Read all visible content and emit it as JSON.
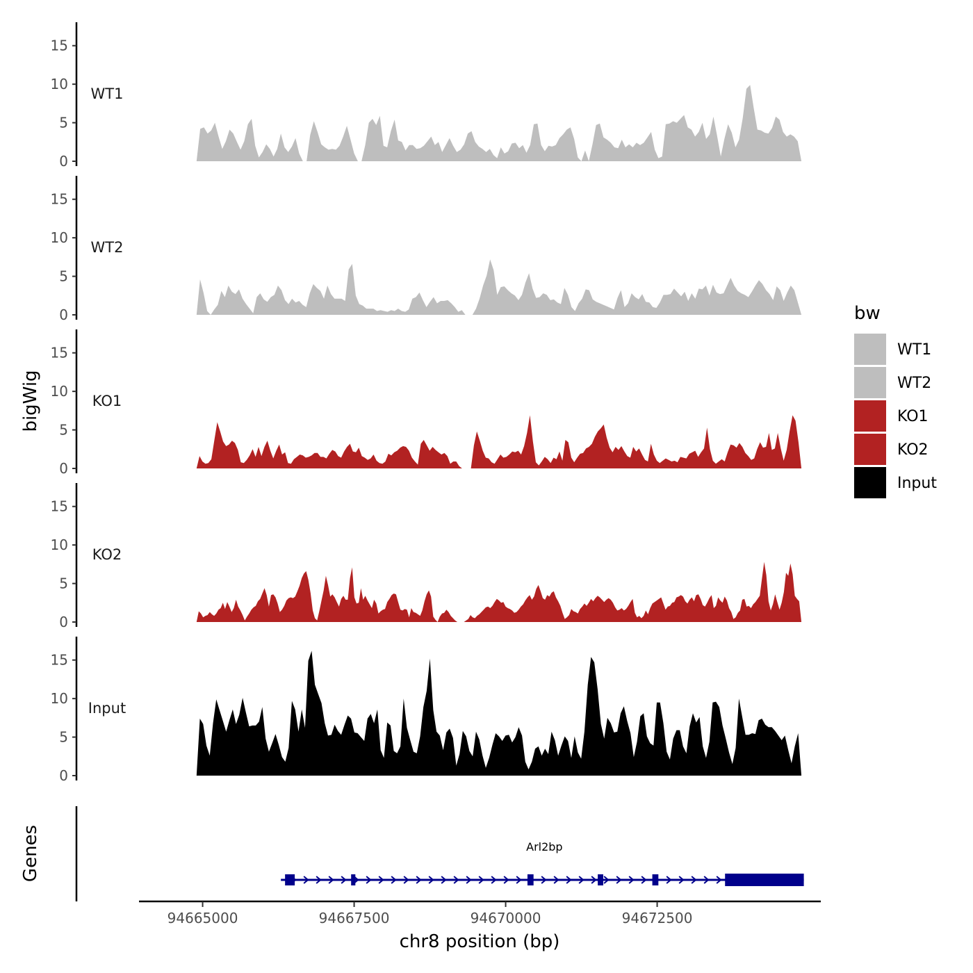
{
  "chart_data": {
    "type": "area",
    "title": "",
    "ylabel": "bigWig",
    "xlabel": "chr8 position (bp)",
    "ylim": [
      0,
      17.5
    ],
    "yticks": [
      0,
      5,
      10,
      15
    ],
    "xlim": [
      94663950,
      94675200
    ],
    "xticks": [
      94665000,
      94667500,
      94670000,
      94672500
    ],
    "x_range": [
      94664900,
      94674880
    ],
    "legend": {
      "title": "bw",
      "position": "right",
      "entries": [
        {
          "label": "WT1",
          "color": "#bebebe"
        },
        {
          "label": "WT2",
          "color": "#bebebe"
        },
        {
          "label": "KO1",
          "color": "#b22222"
        },
        {
          "label": "KO2",
          "color": "#b22222"
        },
        {
          "label": "Input",
          "color": "#000000"
        }
      ]
    },
    "series": [
      {
        "name": "WT1",
        "color": "#bebebe",
        "values": [
          0,
          4.2,
          4.4,
          3.6,
          4.0,
          5.0,
          3.2,
          1.6,
          2.6,
          4.1,
          3.6,
          2.5,
          1.5,
          2.6,
          4.8,
          5.5,
          2.0,
          0.5,
          1.2,
          2.2,
          1.6,
          0.6,
          1.6,
          3.6,
          1.8,
          1.2,
          1.9,
          3.0,
          1.0,
          0,
          0,
          3.4,
          5.2,
          3.8,
          2.2,
          1.8,
          1.5,
          1.6,
          1.5,
          2.0,
          3.2,
          4.6,
          2.8,
          1.0,
          0,
          0,
          2.1,
          5.0,
          5.5,
          4.7,
          5.9,
          2.0,
          1.8,
          3.9,
          5.4,
          2.7,
          2.5,
          1.4,
          2.1,
          2.1,
          1.6,
          1.7,
          2.0,
          2.6,
          3.2,
          2.1,
          2.5,
          1.2,
          2.1,
          3.0,
          2.0,
          1.2,
          1.5,
          2.2,
          3.6,
          3.9,
          2.5,
          1.9,
          1.6,
          1.2,
          1.6,
          0.8,
          0.4,
          1.8,
          1.0,
          1.3,
          2.3,
          2.4,
          1.7,
          2.1,
          1.1,
          2.1,
          4.8,
          4.9,
          2.1,
          1.3,
          2.0,
          1.9,
          2.1,
          3.0,
          3.5,
          4.1,
          4.4,
          2.9,
          0.5,
          0,
          1.4,
          0,
          2.2,
          4.7,
          4.9,
          3.1,
          2.8,
          2.4,
          1.8,
          1.7,
          2.8,
          1.8,
          2.2,
          1.8,
          2.4,
          2.1,
          2.4,
          3.1,
          3.8,
          1.5,
          0.4,
          0.6,
          4.8,
          4.9,
          5.2,
          5.0,
          5.5,
          6.0,
          4.4,
          4.1,
          3.2,
          3.8,
          5.0,
          2.9,
          3.5,
          5.8,
          3.3,
          0.6,
          2.9,
          4.8,
          3.7,
          1.8,
          2.8,
          5.6,
          9.4,
          9.9,
          6.9,
          4.1,
          4.0,
          3.7,
          3.6,
          4.3,
          5.8,
          5.4,
          3.8,
          3.2,
          3.5,
          3.2,
          2.6,
          0
        ]
      },
      {
        "name": "WT2",
        "color": "#bebebe",
        "values": [
          0,
          4.6,
          2.8,
          0.5,
          0,
          0.7,
          1.3,
          3.1,
          2.3,
          3.8,
          3.0,
          2.7,
          3.3,
          2.1,
          1.4,
          0.8,
          0.2,
          2.3,
          2.8,
          2.0,
          1.7,
          2.3,
          2.6,
          3.8,
          3.2,
          1.9,
          1.4,
          2.1,
          1.6,
          1.8,
          1.3,
          1.0,
          2.8,
          4.0,
          3.5,
          3.1,
          2.1,
          3.8,
          2.7,
          2.1,
          2.1,
          2.1,
          1.8,
          5.9,
          6.6,
          2.5,
          1.4,
          1.2,
          0.8,
          0.8,
          0.8,
          0.5,
          0.6,
          0.5,
          0.4,
          0.6,
          0.5,
          0.8,
          0.5,
          0.4,
          0.7,
          2.1,
          2.3,
          2.9,
          1.9,
          1.0,
          1.7,
          2.3,
          1.5,
          1.8,
          1.8,
          1.9,
          1.5,
          1.0,
          0.4,
          0.6,
          0,
          0,
          0,
          0.8,
          2.1,
          3.8,
          5.1,
          7.2,
          5.8,
          2.6,
          3.6,
          3.7,
          3.2,
          2.8,
          2.5,
          1.9,
          2.6,
          4.2,
          5.4,
          3.4,
          2.2,
          2.3,
          2.8,
          2.6,
          1.9,
          2.0,
          1.6,
          1.4,
          3.5,
          2.6,
          1.0,
          0.5,
          1.5,
          2.1,
          3.3,
          3.2,
          2.0,
          1.7,
          1.5,
          1.3,
          1.1,
          0.9,
          0.7,
          2.2,
          3.2,
          1.0,
          1.5,
          2.8,
          2.3,
          2.0,
          2.7,
          1.7,
          1.6,
          1.0,
          0.9,
          1.6,
          2.6,
          2.6,
          2.7,
          3.4,
          2.9,
          2.4,
          3.0,
          1.8,
          2.8,
          2.1,
          3.4,
          3.3,
          3.8,
          2.5,
          3.9,
          2.9,
          2.7,
          2.8,
          3.8,
          4.8,
          3.8,
          3.1,
          2.8,
          2.6,
          2.3,
          3.0,
          3.8,
          4.5,
          4.0,
          3.2,
          2.7,
          1.9,
          3.7,
          3.2,
          1.8,
          2.9,
          3.8,
          3.2,
          1.6,
          0
        ]
      },
      {
        "name": "KO1",
        "color": "#b22222",
        "values": [
          0,
          1.6,
          0.9,
          0.6,
          0.7,
          1.2,
          3.6,
          6.0,
          4.8,
          3.5,
          2.9,
          3.1,
          3.6,
          3.3,
          2.4,
          0.8,
          0.7,
          1.1,
          1.7,
          2.5,
          1.5,
          2.8,
          1.6,
          2.8,
          3.6,
          2.3,
          1.3,
          2.3,
          3.1,
          1.8,
          2.1,
          0.7,
          0.6,
          1.2,
          1.5,
          1.8,
          1.7,
          1.4,
          1.5,
          1.7,
          2.0,
          2.0,
          1.5,
          1.5,
          1.3,
          1.9,
          2.4,
          2.2,
          1.6,
          1.4,
          2.2,
          2.8,
          3.2,
          2.2,
          2.1,
          2.7,
          1.6,
          1.4,
          1.1,
          1.3,
          1.8,
          1.0,
          0.7,
          0.6,
          0.9,
          1.9,
          1.7,
          2.1,
          2.3,
          2.7,
          2.9,
          2.8,
          2.3,
          1.4,
          0.9,
          0.5,
          3.2,
          3.7,
          3.0,
          2.3,
          2.8,
          2.4,
          2.1,
          1.8,
          2.0,
          1.6,
          0.6,
          0.9,
          0.9,
          0.3,
          0,
          0,
          0,
          0,
          3.0,
          4.8,
          3.6,
          2.3,
          1.4,
          1.3,
          0.8,
          0.6,
          1.2,
          1.8,
          1.4,
          1.5,
          1.8,
          2.2,
          2.1,
          2.3,
          1.8,
          2.9,
          4.6,
          6.9,
          3.5,
          0.8,
          0.4,
          0.9,
          1.5,
          1.2,
          0.7,
          1.4,
          1.2,
          2.2,
          1.0,
          3.7,
          3.4,
          1.4,
          0.8,
          1.4,
          1.9,
          2.0,
          2.6,
          2.8,
          3.2,
          4.1,
          4.8,
          5.2,
          5.7,
          4.0,
          2.7,
          2.1,
          2.8,
          2.4,
          2.9,
          2.2,
          1.6,
          1.4,
          2.8,
          2.2,
          2.6,
          1.8,
          1.1,
          0.9,
          3.2,
          1.8,
          1.0,
          0.7,
          1.0,
          1.3,
          1.1,
          0.9,
          1.0,
          0.8,
          1.5,
          1.4,
          1.3,
          1.9,
          2.1,
          2.3,
          1.5,
          2.1,
          2.6,
          5.3,
          2.5,
          1.0,
          0.6,
          0.9,
          1.2,
          0.9,
          2.1,
          3.1,
          3.0,
          2.7,
          3.3,
          2.8,
          2.0,
          1.6,
          1.1,
          1.3,
          2.5,
          3.4,
          2.7,
          2.8,
          4.6,
          2.4,
          2.6,
          4.6,
          2.6,
          1.0,
          2.4,
          4.8,
          6.9,
          6.2,
          3.4,
          0
        ]
      },
      {
        "name": "KO2",
        "color": "#b22222",
        "values": [
          0,
          1.4,
          1.1,
          0.6,
          0.8,
          0.9,
          1.3,
          1.0,
          0.8,
          1.1,
          1.6,
          1.8,
          2.5,
          1.7,
          2.6,
          2.0,
          1.3,
          1.8,
          2.9,
          2.0,
          1.5,
          0.9,
          0.2,
          0.7,
          1.1,
          1.6,
          1.9,
          2.1,
          2.7,
          3.0,
          3.7,
          4.4,
          3.5,
          2.0,
          3.5,
          3.6,
          3.2,
          2.4,
          1.3,
          1.6,
          2.1,
          2.8,
          3.1,
          3.2,
          3.1,
          3.3,
          4.0,
          4.7,
          5.7,
          6.3,
          6.6,
          5.5,
          3.8,
          1.5,
          0.5,
          0.2,
          1.4,
          2.8,
          4.1,
          6.0,
          4.8,
          3.3,
          3.6,
          3.2,
          2.6,
          2.0,
          3.0,
          3.4,
          2.9,
          2.9,
          5.7,
          7.1,
          3.2,
          2.4,
          2.5,
          4.4,
          2.9,
          3.4,
          2.8,
          2.3,
          1.8,
          2.9,
          2.4,
          1.1,
          1.4,
          1.6,
          1.7,
          2.6,
          3.0,
          3.5,
          3.7,
          3.6,
          2.6,
          1.6,
          1.5,
          1.7,
          1.6,
          0.6,
          1.8,
          1.3,
          1.2,
          1.0,
          0.8,
          1.5,
          2.7,
          3.6,
          4.1,
          3.3,
          0.7,
          0.3,
          0,
          0.7,
          1.1,
          1.2,
          1.6,
          1.3,
          0.8,
          0.5,
          0.2,
          0,
          0,
          0,
          0,
          0.2,
          0.4,
          0.9,
          0.6,
          0.5,
          0.8,
          1.0,
          1.3,
          1.6,
          1.9,
          2.0,
          1.8,
          2.1,
          2.6,
          3.0,
          2.8,
          2.5,
          2.6,
          2.0,
          1.8,
          1.7,
          1.5,
          1.2,
          1.3,
          1.6,
          2.0,
          2.3,
          2.8,
          3.2,
          3.5,
          2.9,
          3.3,
          4.3,
          4.8,
          4.0,
          3.1,
          2.9,
          3.5,
          3.3,
          3.8,
          4.0,
          3.2,
          2.7,
          2.1,
          1.2,
          0.4,
          0.6,
          0.9,
          1.7,
          1.4,
          1.3,
          1.1,
          1.7,
          2.0,
          2.4,
          2.1,
          2.5,
          3.0,
          2.7,
          3.1,
          3.4,
          3.2,
          2.9,
          2.6,
          2.9,
          3.1,
          2.9,
          2.5,
          1.9,
          1.5,
          1.6,
          1.8,
          1.5,
          1.7,
          2.1,
          2.6,
          3.0,
          1.2,
          0.6,
          0.8,
          0.5,
          0.8,
          1.5,
          1.0,
          1.8,
          2.4,
          2.6,
          2.8,
          3.0,
          3.2,
          2.4,
          1.6,
          2.0,
          2.1,
          2.5,
          2.6,
          3.2,
          3.3,
          3.5,
          3.3,
          2.7,
          2.4,
          2.9,
          3.2,
          2.7,
          3.5,
          3.6,
          3.0,
          2.2,
          2.0,
          2.5,
          3.1,
          3.5,
          1.8,
          2.1,
          3.2,
          2.8,
          2.5,
          3.3,
          2.8,
          1.8,
          1.3,
          0.4,
          0.6,
          1.2,
          1.5,
          2.9,
          3.0,
          2.0,
          2.1,
          1.8,
          2.3,
          2.6,
          3.0,
          3.4,
          5.6,
          7.8,
          6.1,
          2.7,
          1.5,
          2.3,
          3.6,
          2.6,
          1.6,
          2.5,
          3.9,
          6.4,
          6.0,
          7.6,
          6.2,
          3.4,
          3.0,
          2.7,
          0
        ]
      },
      {
        "name": "Input",
        "color": "#000000",
        "values": [
          0,
          7.4,
          6.7,
          3.9,
          2.6,
          6.8,
          9.9,
          8.5,
          7.1,
          5.7,
          7.2,
          8.6,
          6.7,
          7.9,
          10.1,
          8.2,
          6.4,
          6.5,
          6.5,
          7.0,
          8.9,
          4.8,
          3.1,
          4.2,
          5.4,
          4.0,
          2.4,
          1.8,
          3.6,
          9.7,
          8.6,
          5.7,
          8.6,
          6.2,
          14.9,
          16.2,
          11.8,
          10.6,
          9.4,
          6.8,
          5.2,
          5.3,
          6.6,
          5.8,
          5.3,
          6.6,
          7.8,
          7.4,
          5.6,
          5.5,
          5.0,
          4.5,
          7.4,
          8.0,
          6.8,
          8.6,
          3.3,
          2.3,
          6.9,
          6.5,
          3.2,
          2.9,
          3.8,
          10.0,
          6.2,
          4.6,
          3.1,
          2.9,
          5.1,
          8.9,
          11.0,
          15.2,
          8.5,
          5.7,
          5.2,
          3.3,
          5.6,
          6.1,
          4.9,
          1.3,
          2.8,
          5.8,
          5.1,
          3.2,
          2.5,
          5.7,
          4.7,
          2.6,
          1.0,
          2.3,
          4.0,
          5.5,
          5.1,
          4.5,
          5.2,
          5.3,
          4.3,
          5.0,
          6.3,
          5.2,
          1.8,
          0.8,
          1.8,
          3.5,
          3.8,
          2.6,
          3.5,
          2.8,
          5.7,
          4.6,
          2.6,
          3.9,
          5.1,
          4.5,
          2.3,
          5.1,
          3.0,
          2.2,
          5.7,
          11.8,
          15.4,
          14.7,
          11.2,
          6.7,
          4.8,
          7.5,
          6.8,
          5.6,
          5.7,
          8.1,
          9.0,
          7.1,
          5.5,
          2.4,
          4.4,
          7.7,
          8.1,
          5.1,
          4.2,
          3.9,
          9.5,
          9.5,
          6.8,
          3.1,
          2.1,
          4.8,
          5.9,
          5.9,
          3.8,
          2.9,
          6.4,
          8.1,
          6.9,
          7.6,
          3.8,
          2.3,
          4.4,
          9.5,
          9.6,
          8.9,
          6.5,
          4.8,
          3.0,
          1.5,
          3.6,
          10.0,
          7.6,
          5.3,
          5.3,
          5.5,
          5.4,
          7.2,
          7.4,
          6.6,
          6.3,
          6.3,
          5.8,
          5.2,
          4.6,
          5.2,
          3.3,
          1.6,
          3.8,
          5.5,
          0
        ]
      }
    ]
  },
  "genes_track": {
    "title": "Genes",
    "gene_name": "Arl2bp",
    "strand": "+",
    "start": 94666360,
    "end": 94674920,
    "color": "#00008b",
    "exons": [
      {
        "start": 94666360,
        "end": 94666520
      },
      {
        "start": 94667450,
        "end": 94667520
      },
      {
        "start": 94670360,
        "end": 94670460
      },
      {
        "start": 94671520,
        "end": 94671610
      },
      {
        "start": 94672420,
        "end": 94672520
      },
      {
        "start": 94673620,
        "end": 94674920
      }
    ]
  }
}
